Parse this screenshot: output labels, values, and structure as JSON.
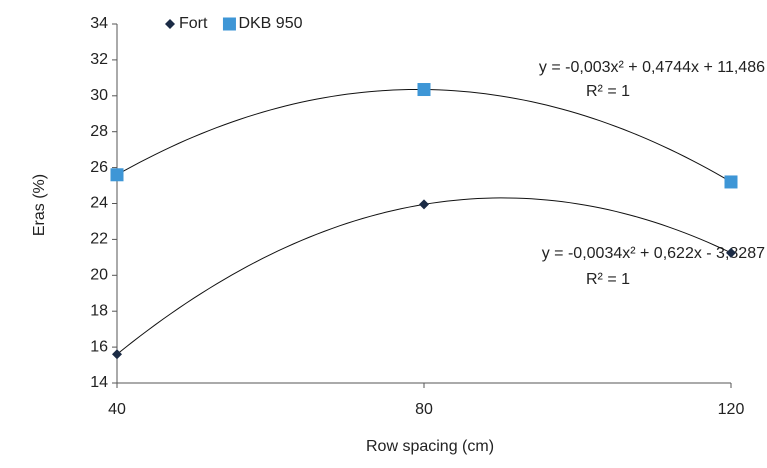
{
  "chart_data": {
    "type": "scatter",
    "x_label": "Row spacing (cm)",
    "y_label": "Eras (%)",
    "x": [
      40,
      80,
      120
    ],
    "series": [
      {
        "name": "Fort",
        "color": "#1b2b45",
        "marker": "diamond",
        "values": [
          15.6,
          23.95,
          21.25
        ]
      },
      {
        "name": "DKB 950",
        "color": "#3e96d6",
        "marker": "square",
        "values": [
          25.6,
          30.35,
          25.2
        ]
      }
    ],
    "xlim": [
      40,
      120
    ],
    "xticks": [
      40,
      80,
      120
    ],
    "ylim": [
      14,
      34
    ],
    "yticks": [
      14,
      16,
      18,
      20,
      22,
      24,
      26,
      28,
      30,
      32,
      34
    ],
    "trendline": "quadratic",
    "grid": false,
    "annotations": [
      {
        "equation": "y = -0,003x² + 0,4744x + 11,486",
        "r2": "R² = 1"
      },
      {
        "equation": "y = -0,0034x² + 0,622x - 3,8287",
        "r2": "R² = 1"
      }
    ]
  }
}
